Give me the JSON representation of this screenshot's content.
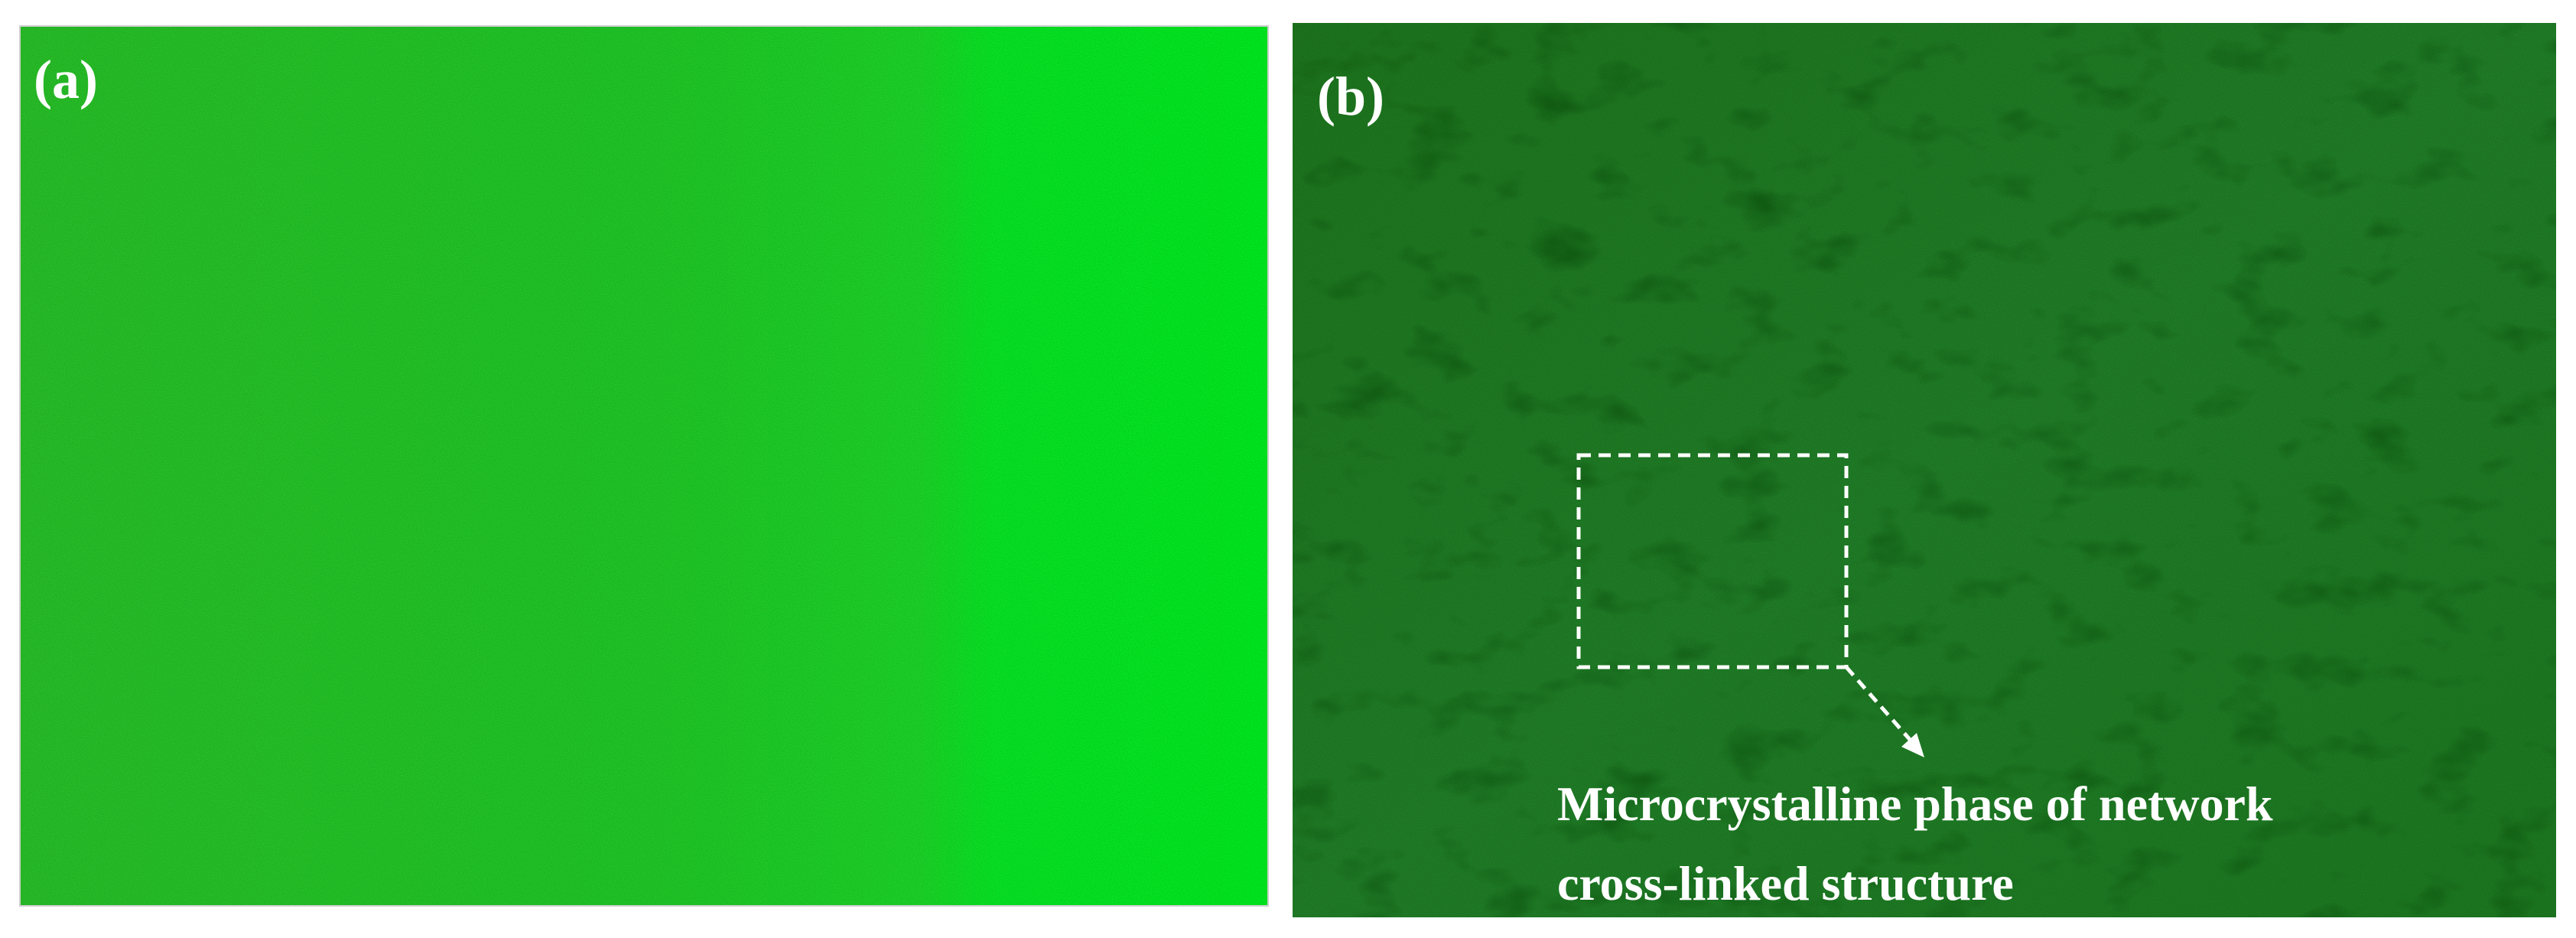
{
  "panels": [
    {
      "label": "(a)"
    },
    {
      "label": "(b)"
    }
  ],
  "annotation": {
    "lines": [
      "Microcrystalline phase of network",
      "cross-linked structure"
    ]
  }
}
